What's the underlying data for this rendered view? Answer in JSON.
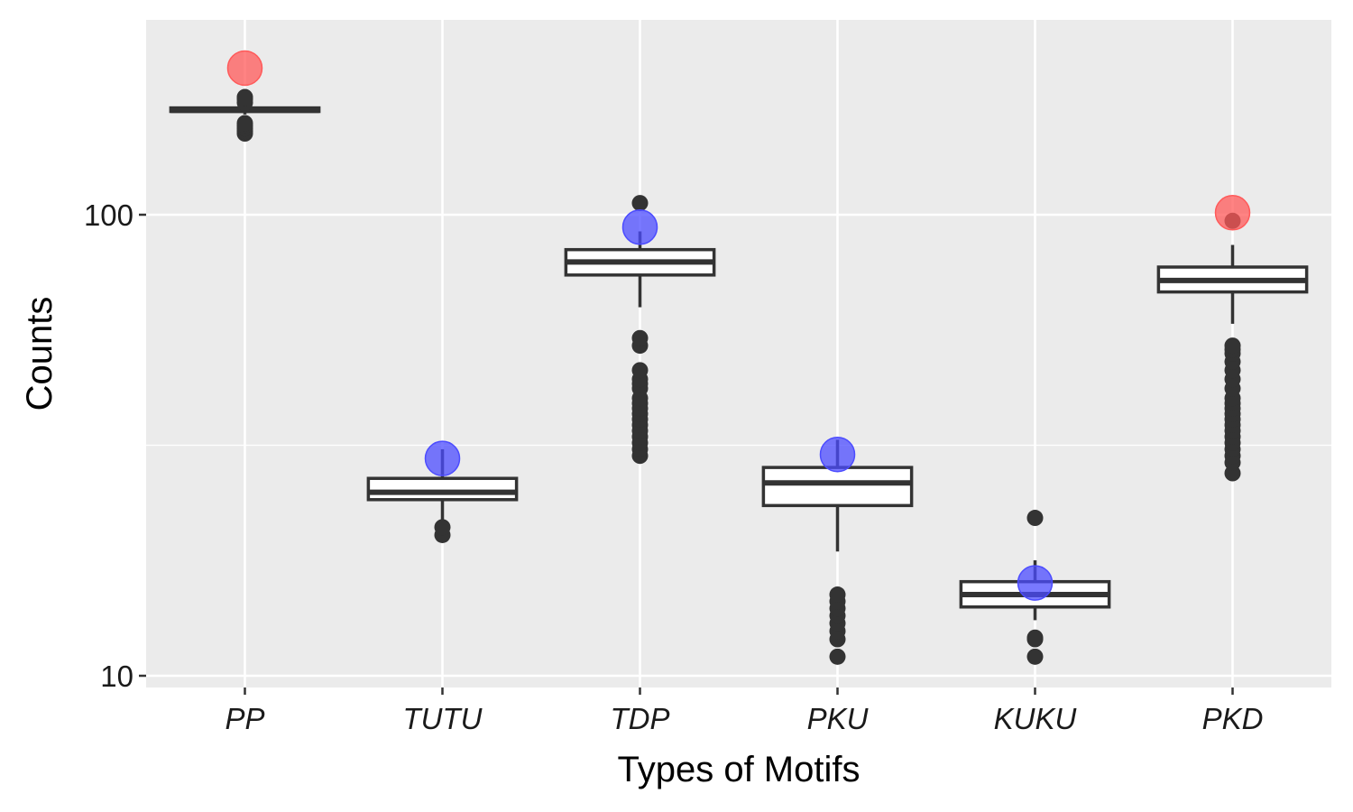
{
  "chart_data": {
    "type": "boxplot",
    "xlabel": "Types of Motifs",
    "ylabel": "Counts",
    "y_scale": "log10",
    "ylim": [
      9.7,
      220
    ],
    "y_ticks": [
      10,
      100
    ],
    "y_tick_labels": [
      "10",
      "100"
    ],
    "grid": true,
    "categories": [
      "PP",
      "TUTU",
      "TDP",
      "PKU",
      "KUKU",
      "PKD"
    ],
    "boxes": [
      {
        "category": "PP",
        "whisker_low": 165,
        "q1": 167.5,
        "median": 168.5,
        "q3": 170.5,
        "whisker_high": 173,
        "outliers": [
          150,
          152,
          154,
          156,
          158,
          175,
          178,
          180
        ]
      },
      {
        "category": "TUTU",
        "whisker_low": 21,
        "q1": 24.1,
        "median": 25.0,
        "q3": 26.8,
        "whisker_high": 31,
        "outliers": [
          20.2,
          21.0
        ]
      },
      {
        "category": "TDP",
        "whisker_low": 63,
        "q1": 74,
        "median": 79,
        "q3": 84,
        "whisker_high": 92,
        "outliers": [
          30,
          31,
          32,
          33,
          34,
          35,
          36,
          37,
          38,
          39,
          40,
          42,
          43,
          44,
          46,
          52,
          54,
          106
        ]
      },
      {
        "category": "PKU",
        "whisker_low": 18.6,
        "q1": 23.4,
        "median": 26.2,
        "q3": 28.3,
        "whisker_high": 32.5,
        "outliers": [
          11,
          12,
          12.5,
          13,
          13.5,
          14,
          14.5,
          15
        ]
      },
      {
        "category": "KUKU",
        "whisker_low": 13.2,
        "q1": 14.1,
        "median": 15.0,
        "q3": 16.0,
        "whisker_high": 17.8,
        "outliers": [
          11,
          12,
          12.1,
          22
        ]
      },
      {
        "category": "PKD",
        "whisker_low": 58,
        "q1": 68,
        "median": 72,
        "q3": 77,
        "whisker_high": 86,
        "outliers": [
          27.5,
          29,
          30,
          31,
          32,
          33,
          34,
          35,
          36,
          37,
          38,
          39,
          40,
          42,
          44,
          46,
          48,
          50,
          51,
          52,
          97
        ]
      }
    ],
    "observed_points": [
      {
        "category": "PP",
        "value": 208,
        "color": "#ff5a5a"
      },
      {
        "category": "TUTU",
        "value": 29.6,
        "color": "#4c4cff"
      },
      {
        "category": "TDP",
        "value": 94,
        "color": "#4c4cff"
      },
      {
        "category": "PKU",
        "value": 30.2,
        "color": "#4c4cff"
      },
      {
        "category": "KUKU",
        "value": 15.9,
        "color": "#4c4cff"
      },
      {
        "category": "PKD",
        "value": 101,
        "color": "#ff5a5a"
      }
    ],
    "colors": {
      "panel_background": "#ebebeb",
      "grid": "#ffffff",
      "box_fill": "#ffffff",
      "box_line": "#333333",
      "outlier": "#333333",
      "significant_high": "#ff5a5a",
      "not_significant": "#4c4cff"
    }
  }
}
